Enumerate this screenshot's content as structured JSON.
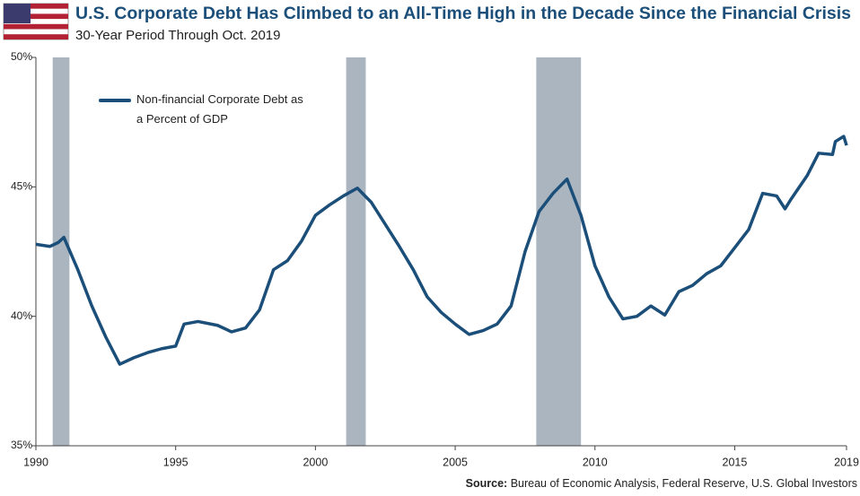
{
  "chart_data": {
    "type": "line",
    "title": "U.S. Corporate Debt Has Climbed to an All-Time High in the Decade Since the Financial Crisis",
    "subtitle": "30-Year Period Through Oct. 2019",
    "source_label": "Source:",
    "source": "Bureau of Economic Analysis, Federal Reserve, U.S. Global Investors",
    "x": [
      1990.0,
      1990.5,
      1990.8,
      1991.0,
      1991.5,
      1992.0,
      1992.5,
      1993.0,
      1993.5,
      1994.0,
      1994.5,
      1995.0,
      1995.3,
      1995.8,
      1996.5,
      1997.0,
      1997.5,
      1998.0,
      1998.5,
      1999.0,
      1999.5,
      2000.0,
      2000.5,
      2001.0,
      2001.5,
      2002.0,
      2002.5,
      2003.0,
      2003.5,
      2004.0,
      2004.5,
      2005.0,
      2005.5,
      2006.0,
      2006.5,
      2007.0,
      2007.5,
      2008.0,
      2008.5,
      2009.0,
      2009.5,
      2010.0,
      2010.5,
      2011.0,
      2011.5,
      2012.0,
      2012.5,
      2013.0,
      2013.5,
      2014.0,
      2014.5,
      2015.0,
      2015.5,
      2016.0,
      2016.5,
      2016.8,
      2017.0,
      2017.6,
      2018.0,
      2018.5,
      2018.6,
      2018.9,
      2019.0
    ],
    "series": [
      {
        "name": "Non-financial Corporate Debt as a Percent of GDP",
        "color": "#1b4f7a",
        "values": [
          42.78,
          42.7,
          42.85,
          43.05,
          41.8,
          40.4,
          39.2,
          38.15,
          38.4,
          38.6,
          38.75,
          38.85,
          39.7,
          39.8,
          39.65,
          39.4,
          39.55,
          40.25,
          41.8,
          42.15,
          42.9,
          43.9,
          44.3,
          44.65,
          44.95,
          44.4,
          43.55,
          42.7,
          41.8,
          40.75,
          40.15,
          39.7,
          39.3,
          39.45,
          39.7,
          40.4,
          42.5,
          44.05,
          44.75,
          45.3,
          43.9,
          41.95,
          40.75,
          39.9,
          40.0,
          40.4,
          40.05,
          40.95,
          41.2,
          41.65,
          41.95,
          42.65,
          43.35,
          44.75,
          44.65,
          44.15,
          44.5,
          45.45,
          46.3,
          46.25,
          46.75,
          46.95,
          46.6
        ]
      }
    ],
    "recessions": [
      [
        1990.6,
        1991.2
      ],
      [
        2001.1,
        2001.8
      ],
      [
        2007.9,
        2009.5
      ]
    ],
    "recession_color": "#aab5c0",
    "xlim": [
      1990,
      2019
    ],
    "xticks": [
      1990,
      1995,
      2000,
      2005,
      2010,
      2015,
      2019
    ],
    "ylim": [
      35,
      50
    ],
    "yticks": [
      {
        "value": 35,
        "label": "35%"
      },
      {
        "value": 40,
        "label": "40%"
      },
      {
        "value": 45,
        "label": "45%"
      },
      {
        "value": 50,
        "label": "50%"
      }
    ]
  }
}
